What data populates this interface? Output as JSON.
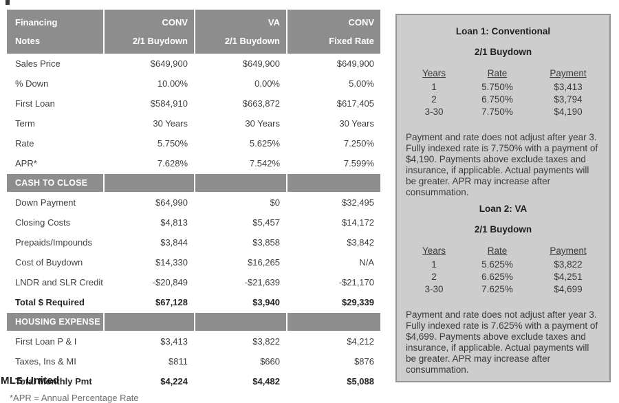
{
  "table": {
    "header": {
      "label_line1": "Financing",
      "label_line2": "Notes",
      "columns": [
        {
          "line1": "CONV",
          "line2": "2/1 Buydown"
        },
        {
          "line1": "VA",
          "line2": "2/1 Buydown"
        },
        {
          "line1": "CONV",
          "line2": "Fixed Rate"
        }
      ]
    },
    "sections": [
      {
        "band": null,
        "rows": [
          {
            "label": "Sales Price",
            "values": [
              "$649,900",
              "$649,900",
              "$649,900"
            ],
            "bold": false
          },
          {
            "label": "% Down",
            "values": [
              "10.00%",
              "0.00%",
              "5.00%"
            ],
            "bold": false
          },
          {
            "label": "First Loan",
            "values": [
              "$584,910",
              "$663,872",
              "$617,405"
            ],
            "bold": false
          },
          {
            "label": "Term",
            "values": [
              "30 Years",
              "30 Years",
              "30 Years"
            ],
            "bold": false
          },
          {
            "label": "Rate",
            "values": [
              "5.750%",
              "5.625%",
              "7.250%"
            ],
            "bold": false
          },
          {
            "label": "APR*",
            "values": [
              "7.628%",
              "7.542%",
              "7.599%"
            ],
            "bold": false
          }
        ]
      },
      {
        "band": "CASH TO CLOSE",
        "rows": [
          {
            "label": "Down Payment",
            "values": [
              "$64,990",
              "$0",
              "$32,495"
            ],
            "bold": false
          },
          {
            "label": "Closing Costs",
            "values": [
              "$4,813",
              "$5,457",
              "$14,172"
            ],
            "bold": false
          },
          {
            "label": "Prepaids/Impounds",
            "values": [
              "$3,844",
              "$3,858",
              "$3,842"
            ],
            "bold": false
          },
          {
            "label": "Cost of Buydown",
            "values": [
              "$14,330",
              "$16,265",
              "N/A"
            ],
            "bold": false
          },
          {
            "label": "LNDR and SLR Credit",
            "values": [
              "-$20,849",
              "-$21,639",
              "-$21,170"
            ],
            "bold": false
          },
          {
            "label": "Total $ Required",
            "values": [
              "$67,128",
              "$3,940",
              "$29,339"
            ],
            "bold": true
          }
        ]
      },
      {
        "band": "HOUSING EXPENSE",
        "rows": [
          {
            "label": "First Loan P & I",
            "values": [
              "$3,413",
              "$3,822",
              "$4,212"
            ],
            "bold": false
          },
          {
            "label": "Taxes, Ins & MI",
            "values": [
              "$811",
              "$660",
              "$876"
            ],
            "bold": false
          },
          {
            "label": "Total Monthly Pmt",
            "values": [
              "$4,224",
              "$4,482",
              "$5,088"
            ],
            "bold": true
          }
        ]
      }
    ],
    "footnote": "*APR = Annual Percentage Rate"
  },
  "watermark_text": "MLS United",
  "panel": {
    "loans": [
      {
        "title": "Loan 1: Conventional",
        "subtitle": "2/1 Buydown",
        "schedule": {
          "headers": [
            "Years",
            "Rate",
            "Payment"
          ],
          "rows": [
            [
              "1",
              "5.750%",
              "$3,413"
            ],
            [
              "2",
              "6.750%",
              "$3,794"
            ],
            [
              "3-30",
              "7.750%",
              "$4,190"
            ]
          ]
        },
        "note": "Payment and rate does not adjust after year 3. Fully indexed rate is 7.750% with a payment of $4,190. Payments above exclude taxes and insurance, if applicable. Actual payments will be greater. APR may increase after consummation."
      },
      {
        "title": "Loan 2: VA",
        "subtitle": "2/1 Buydown",
        "schedule": {
          "headers": [
            "Years",
            "Rate",
            "Payment"
          ],
          "rows": [
            [
              "1",
              "5.625%",
              "$3,822"
            ],
            [
              "2",
              "6.625%",
              "$4,251"
            ],
            [
              "3-30",
              "7.625%",
              "$4,699"
            ]
          ]
        },
        "note": "Payment and rate does not adjust after year 3. Fully indexed rate is 7.625% with a payment of $4,699. Payments above exclude taxes and insurance, if applicable. Actual payments will be greater. APR may increase after consummation."
      }
    ]
  },
  "colors": {
    "header_band": "#8d8d8d",
    "panel_background": "#cdcdcd",
    "panel_border": "#939393",
    "header_text": "#ffffff",
    "body_text": "#3f3f3f"
  }
}
